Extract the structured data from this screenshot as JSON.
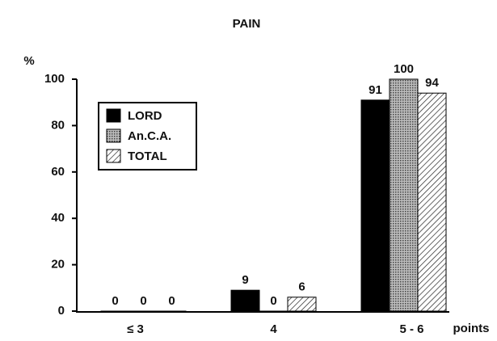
{
  "chart_data": {
    "type": "bar",
    "title": "PAIN",
    "y_label": "%",
    "x_label": "points",
    "categories": [
      "≤ 3",
      "4",
      "5 - 6"
    ],
    "series": [
      {
        "name": "LORD",
        "color": "#000000",
        "pattern": "solid",
        "values": [
          0,
          9,
          91
        ]
      },
      {
        "name": "An.C.A.",
        "color": "#8c8c8c",
        "pattern": "dots",
        "values": [
          0,
          0,
          100
        ]
      },
      {
        "name": "TOTAL",
        "color": "#ffffff",
        "pattern": "hatch",
        "values": [
          0,
          6,
          94
        ]
      }
    ],
    "ylim": [
      0,
      100
    ],
    "yticks": [
      0,
      20,
      40,
      60,
      80,
      100
    ],
    "grid": false,
    "legend": "upper left"
  }
}
